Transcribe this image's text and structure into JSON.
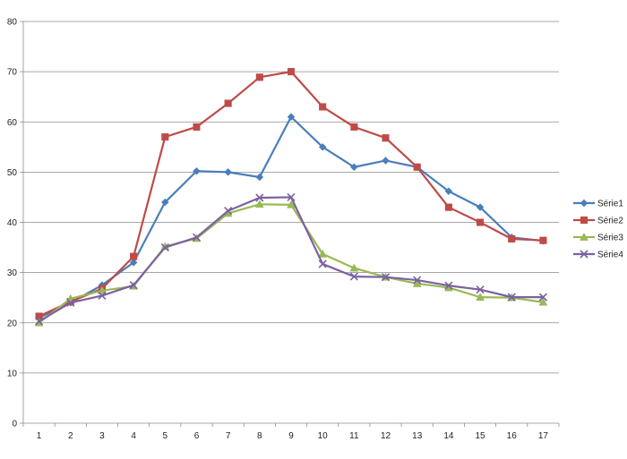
{
  "chart_data": {
    "type": "line",
    "x": [
      1,
      2,
      3,
      4,
      5,
      6,
      7,
      8,
      9,
      10,
      11,
      12,
      13,
      14,
      15,
      16,
      17
    ],
    "ylim": [
      0,
      80
    ],
    "yticks": [
      0,
      10,
      20,
      30,
      40,
      50,
      60,
      70,
      80
    ],
    "grid": "horizontal",
    "legend_position": "right",
    "series": [
      {
        "name": "Série1",
        "color": "#4a7ebb",
        "marker": "diamond",
        "values": [
          21,
          24,
          27.5,
          32,
          44,
          50.2,
          50,
          49,
          61,
          55,
          51,
          52.3,
          51,
          46.2,
          43,
          37,
          36.3
        ]
      },
      {
        "name": "Série2",
        "color": "#be4b48",
        "marker": "square",
        "values": [
          21.3,
          24.2,
          26.8,
          33.2,
          57,
          59,
          63.7,
          68.9,
          70,
          63,
          59,
          56.8,
          51,
          43,
          40,
          36.7,
          36.4
        ]
      },
      {
        "name": "Série3",
        "color": "#98b954",
        "marker": "triangle",
        "values": [
          20,
          24.8,
          26.4,
          27.3,
          35.2,
          36.8,
          41.8,
          43.6,
          43.5,
          33.7,
          30.9,
          29.1,
          27.8,
          27,
          25.1,
          25,
          24.1
        ]
      },
      {
        "name": "Série4",
        "color": "#7d60a0",
        "marker": "x",
        "values": [
          20.3,
          24,
          25.4,
          27.5,
          35,
          37,
          42.3,
          44.9,
          45,
          31.7,
          29.2,
          29.1,
          28.5,
          27.4,
          26.6,
          25.1,
          25.1
        ]
      }
    ]
  }
}
